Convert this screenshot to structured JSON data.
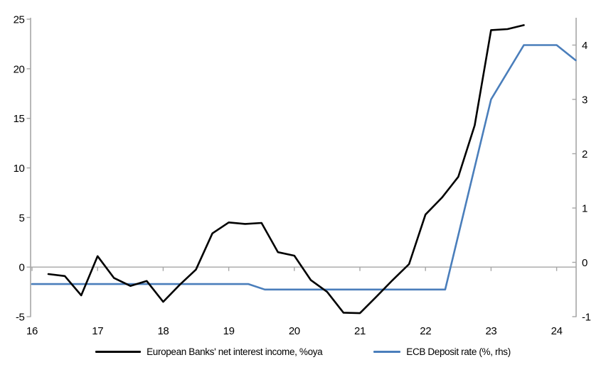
{
  "chart_data": {
    "type": "line",
    "title": "",
    "grid": "zero-line-only",
    "legend_position": "bottom-center",
    "colors": {
      "axis": "#a6a6a6",
      "zero_line": "#a6a6a6",
      "text": "#000000",
      "background": "#ffffff"
    },
    "x_axis": {
      "ticks": [
        16,
        17,
        18,
        19,
        20,
        21,
        22,
        23,
        24
      ],
      "range": [
        16,
        24.3
      ],
      "label": ""
    },
    "left_axis": {
      "ticks": [
        -5,
        0,
        5,
        10,
        15,
        20,
        25
      ],
      "range": [
        -5,
        25
      ],
      "label": ""
    },
    "right_axis": {
      "ticks": [
        -1,
        0,
        1,
        2,
        3,
        4
      ],
      "range": [
        -1,
        4.5
      ],
      "label": ""
    },
    "series": [
      {
        "name": "European Banks' net interest income, %oya",
        "axis": "left",
        "color": "#000000",
        "x": [
          16.25,
          16.5,
          16.75,
          17.0,
          17.25,
          17.5,
          17.75,
          18.0,
          18.25,
          18.5,
          18.75,
          19.0,
          19.25,
          19.5,
          19.75,
          20.0,
          20.25,
          20.5,
          20.75,
          21.0,
          21.25,
          21.5,
          21.75,
          22.0,
          22.25,
          22.5,
          22.75,
          23.0,
          23.25,
          23.5
        ],
        "y": [
          -0.7,
          -0.9,
          -2.85,
          1.1,
          -1.1,
          -1.9,
          -1.4,
          -3.5,
          -1.8,
          -0.25,
          3.4,
          4.5,
          4.35,
          4.45,
          1.5,
          1.15,
          -1.3,
          -2.5,
          -4.6,
          -4.65,
          -3.0,
          -1.3,
          0.3,
          5.3,
          7.0,
          9.1,
          14.3,
          23.9,
          24.0,
          24.4
        ]
      },
      {
        "name": "ECB Deposit rate (%, rhs)",
        "axis": "right",
        "color": "#4a7ebb",
        "x": [
          16.0,
          19.3,
          19.55,
          22.3,
          23.0,
          23.5,
          24.0,
          24.29
        ],
        "y": [
          -0.4,
          -0.4,
          -0.5,
          -0.5,
          3.0,
          4.0,
          4.0,
          3.72
        ]
      }
    ]
  },
  "legend": {
    "items": [
      {
        "label": "European Banks' net interest income, %oya"
      },
      {
        "label": "ECB Deposit rate (%, rhs)"
      }
    ]
  }
}
